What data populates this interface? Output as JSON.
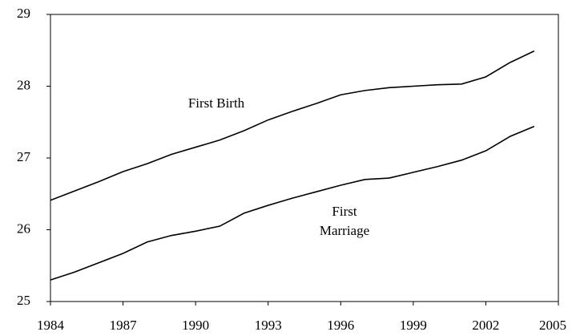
{
  "chart_data": {
    "type": "line",
    "x": [
      1984,
      1985,
      1986,
      1987,
      1988,
      1989,
      1990,
      1991,
      1992,
      1993,
      1994,
      1995,
      1996,
      1997,
      1998,
      1999,
      2000,
      2001,
      2002,
      2003,
      2004
    ],
    "series": [
      {
        "name": "First Birth",
        "color": "#000000",
        "values": [
          26.41,
          26.54,
          26.67,
          26.81,
          26.92,
          27.05,
          27.15,
          27.25,
          27.38,
          27.53,
          27.65,
          27.76,
          27.88,
          27.94,
          27.98,
          28.0,
          28.02,
          28.03,
          28.13,
          28.33,
          28.49
        ]
      },
      {
        "name": "First Marriage",
        "color": "#000000",
        "values": [
          25.3,
          25.41,
          25.54,
          25.67,
          25.83,
          25.92,
          25.98,
          26.05,
          26.23,
          26.34,
          26.44,
          26.53,
          26.62,
          26.7,
          26.72,
          26.8,
          26.88,
          26.97,
          27.1,
          27.3,
          27.44
        ]
      }
    ],
    "xlim": [
      1984,
      2005
    ],
    "xticks": [
      1984,
      1987,
      1990,
      1993,
      1996,
      1999,
      2002,
      2005
    ],
    "ylim": [
      25,
      29
    ],
    "yticks": [
      25,
      26,
      27,
      28,
      29
    ],
    "grid": false
  }
}
